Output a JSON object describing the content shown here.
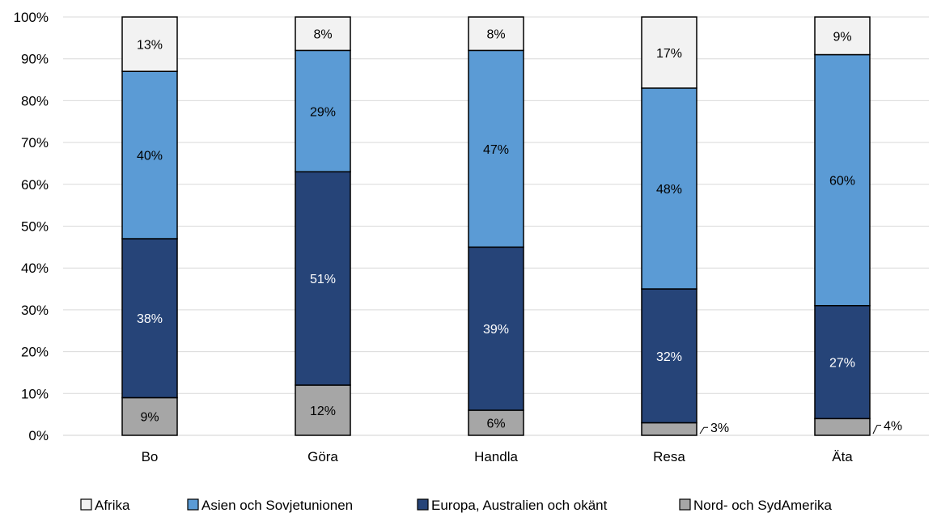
{
  "chart_data": {
    "type": "bar",
    "stacked": true,
    "percent": true,
    "categories": [
      "Bo",
      "Göra",
      "Handla",
      "Resa",
      "Äta"
    ],
    "series": [
      {
        "name": "Nord- och SydAmerika",
        "color": "#a6a6a6",
        "values": [
          9,
          12,
          6,
          3,
          4
        ],
        "labels": [
          "9%",
          "12%",
          "6%",
          "3%",
          "4%"
        ],
        "label_color": "#000000"
      },
      {
        "name": "Europa, Australien och okänt",
        "color": "#264478",
        "values": [
          38,
          51,
          39,
          32,
          27
        ],
        "labels": [
          "38%",
          "51%",
          "39%",
          "32%",
          "27%"
        ],
        "label_color": "#ffffff"
      },
      {
        "name": "Asien och Sovjetunionen",
        "color": "#5b9bd5",
        "values": [
          40,
          29,
          47,
          48,
          60
        ],
        "labels": [
          "40%",
          "29%",
          "47%",
          "48%",
          "60%"
        ],
        "label_color": "#000000"
      },
      {
        "name": "Afrika",
        "color": "#f2f2f2",
        "values": [
          13,
          8,
          8,
          17,
          9
        ],
        "labels": [
          "13%",
          "8%",
          "8%",
          "17%",
          "9%"
        ],
        "label_color": "#000000"
      }
    ],
    "y_ticks": [
      "0%",
      "10%",
      "20%",
      "30%",
      "40%",
      "50%",
      "60%",
      "70%",
      "80%",
      "90%",
      "100%"
    ],
    "ylim": [
      0,
      100
    ],
    "grid": true,
    "legend_position": "bottom",
    "legend_order": [
      "Afrika",
      "Asien och Sovjetunionen",
      "Europa, Australien och okänt",
      "Nord- och SydAmerika"
    ],
    "title": "",
    "xlabel": "",
    "ylabel": ""
  }
}
